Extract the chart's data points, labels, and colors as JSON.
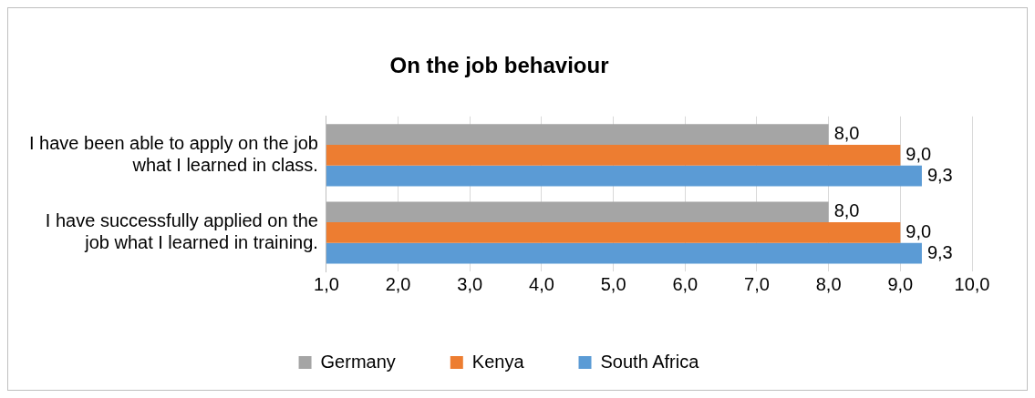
{
  "chart_data": {
    "type": "bar",
    "orientation": "horizontal",
    "title": "On the job behaviour",
    "categories": [
      "I have been able to apply on the job what I learned in class.",
      "I have successfully applied on the job what I learned in training."
    ],
    "series": [
      {
        "name": "Germany",
        "color": "#a5a5a5",
        "values": [
          8.0,
          8.0
        ],
        "value_labels": [
          "8,0",
          "8,0"
        ]
      },
      {
        "name": "Kenya",
        "color": "#ed7d31",
        "values": [
          9.0,
          9.0
        ],
        "value_labels": [
          "9,0",
          "9,0"
        ]
      },
      {
        "name": "South Africa",
        "color": "#5b9bd5",
        "values": [
          9.3,
          9.3
        ],
        "value_labels": [
          "9,3",
          "9,3"
        ]
      }
    ],
    "xlim": [
      1,
      10
    ],
    "xticks": [
      {
        "value": 1,
        "label": "1,0"
      },
      {
        "value": 2,
        "label": "2,0"
      },
      {
        "value": 3,
        "label": "3,0"
      },
      {
        "value": 4,
        "label": "4,0"
      },
      {
        "value": 5,
        "label": "5,0"
      },
      {
        "value": 6,
        "label": "6,0"
      },
      {
        "value": 7,
        "label": "7,0"
      },
      {
        "value": 8,
        "label": "8,0"
      },
      {
        "value": 9,
        "label": "9,0"
      },
      {
        "value": 10,
        "label": "10,0"
      }
    ],
    "grid": "x",
    "legend": "bottom"
  }
}
